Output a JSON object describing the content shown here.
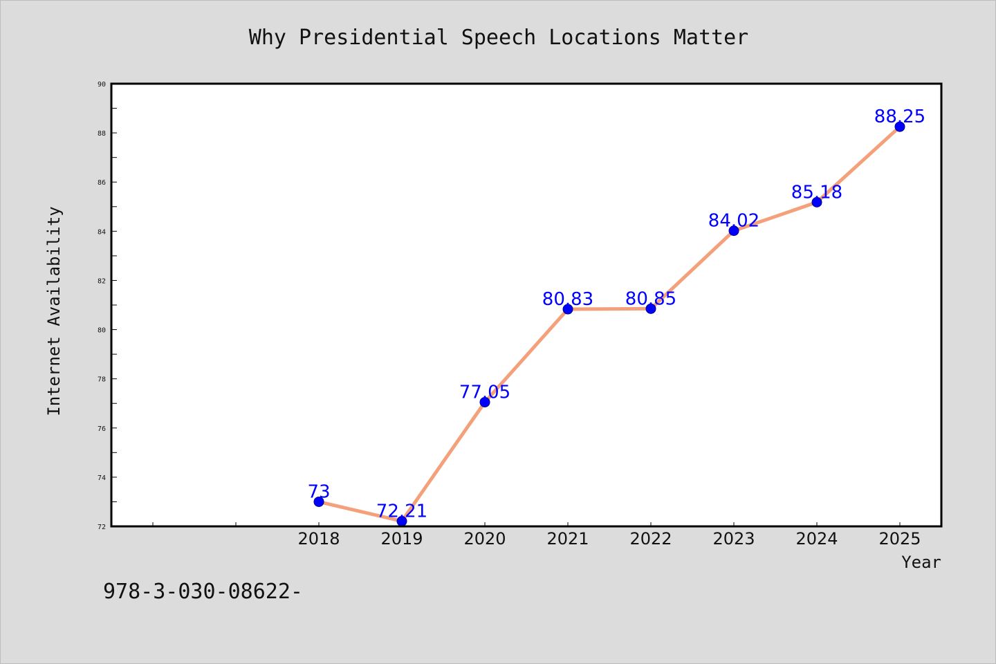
{
  "footnote": "978-3-030-08622-",
  "colors": {
    "background": "#dcdcdc",
    "plot_background": "#ffffff",
    "line": "#f4a07a",
    "marker": "#0000ff",
    "data_label": "#0000ff"
  },
  "chart_data": {
    "type": "line",
    "title": "Why Presidential Speech Locations Matter",
    "xlabel": "Year",
    "ylabel": "Internet Availability",
    "x": [
      2018,
      2019,
      2020,
      2021,
      2022,
      2023,
      2024,
      2025
    ],
    "x_tick_labels": [
      "2018",
      "2019",
      "2020",
      "2021",
      "2022",
      "2023",
      "2024",
      "2025"
    ],
    "xlim": [
      2015.5,
      2025.5
    ],
    "ylim": [
      72,
      90
    ],
    "y_ticks": [
      72,
      74,
      76,
      78,
      80,
      82,
      84,
      86,
      88,
      90
    ],
    "y_tick_labels": [
      "72",
      "74",
      "76",
      "78",
      "80",
      "82",
      "84",
      "86",
      "88",
      "90"
    ],
    "grid": false,
    "series": [
      {
        "values": [
          73,
          72.21,
          77.05,
          80.83,
          80.85,
          84.02,
          85.18,
          88.25
        ],
        "data_labels": [
          "73",
          "72.21",
          "77.05",
          "80.83",
          "80.85",
          "84.02",
          "85.18",
          "88.25"
        ]
      }
    ]
  }
}
